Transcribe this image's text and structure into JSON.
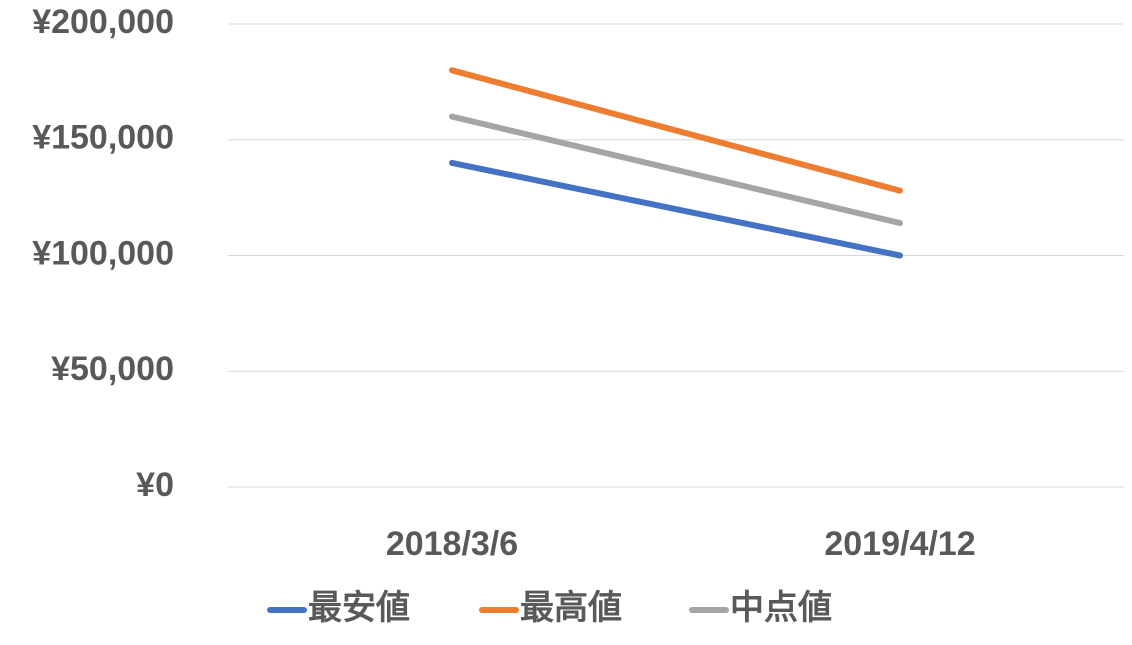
{
  "chart_data": {
    "type": "line",
    "categories": [
      "2018/3/6",
      "2019/4/12"
    ],
    "series": [
      {
        "name": "最安値",
        "color": "#4472c4",
        "values": [
          140000,
          100000
        ]
      },
      {
        "name": "最高値",
        "color": "#ed7d31",
        "values": [
          180000,
          128000
        ]
      },
      {
        "name": "中点値",
        "color": "#a5a5a5",
        "values": [
          160000,
          114000
        ]
      }
    ],
    "ylim": [
      0,
      200000
    ],
    "yticks": [
      {
        "value": 0,
        "label": "¥0"
      },
      {
        "value": 50000,
        "label": "¥50,000"
      },
      {
        "value": 100000,
        "label": "¥100,000"
      },
      {
        "value": 150000,
        "label": "¥150,000"
      },
      {
        "value": 200000,
        "label": "¥200,000"
      }
    ],
    "grid": true,
    "legend": "bottom"
  }
}
